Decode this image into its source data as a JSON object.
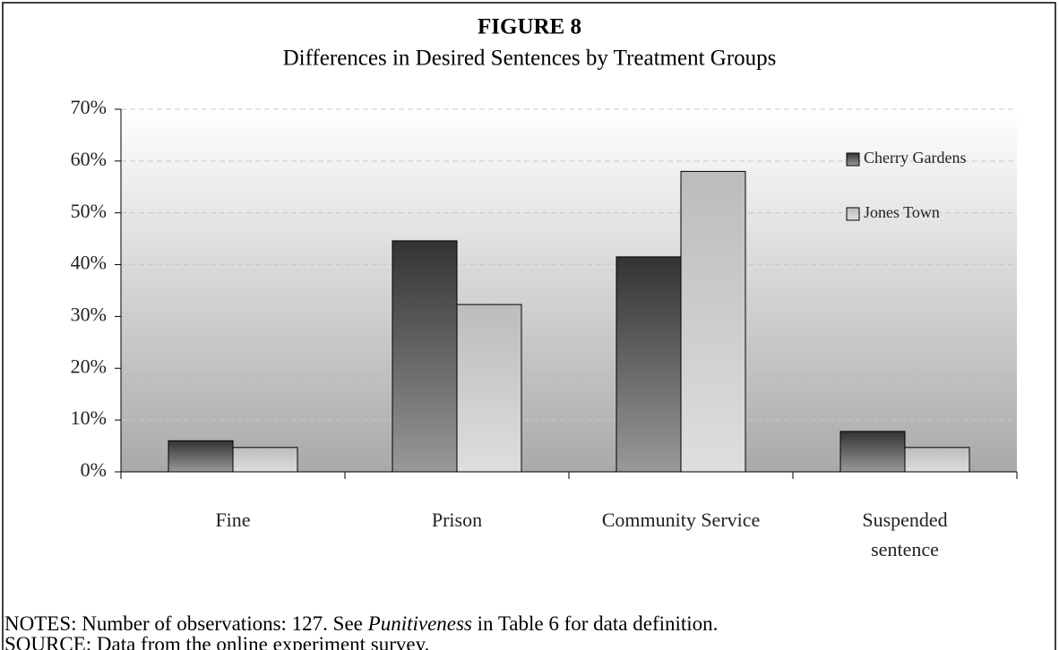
{
  "chart_data": {
    "type": "bar",
    "title": "FIGURE 8",
    "subtitle": "Differences in Desired Sentences by Treatment Groups",
    "categories": [
      "Fine",
      "Prison",
      "Community Service",
      "Suspended sentence"
    ],
    "series": [
      {
        "name": "Cherry Gardens",
        "color": "#333333",
        "values": [
          6.0,
          44.6,
          41.5,
          7.8
        ]
      },
      {
        "name": "Jones Town",
        "color": "#bcbcbc",
        "values": [
          4.7,
          32.3,
          58.0,
          4.7
        ]
      }
    ],
    "ylim": [
      0,
      70
    ],
    "yticks": [
      {
        "value": 0,
        "label": "0%"
      },
      {
        "value": 10,
        "label": "10%"
      },
      {
        "value": 20,
        "label": "20%"
      },
      {
        "value": 30,
        "label": "30%"
      },
      {
        "value": 40,
        "label": "40%"
      },
      {
        "value": 50,
        "label": "50%"
      },
      {
        "value": 60,
        "label": "60%"
      },
      {
        "value": 70,
        "label": "70%"
      }
    ],
    "grid": true,
    "legend": "upper right"
  },
  "notes": [
    "NOTES: Number of observations: 127. See ",
    "Punitiveness",
    " in Table 6 for data definition."
  ],
  "source": "SOURCE: Data from the online experiment survey."
}
